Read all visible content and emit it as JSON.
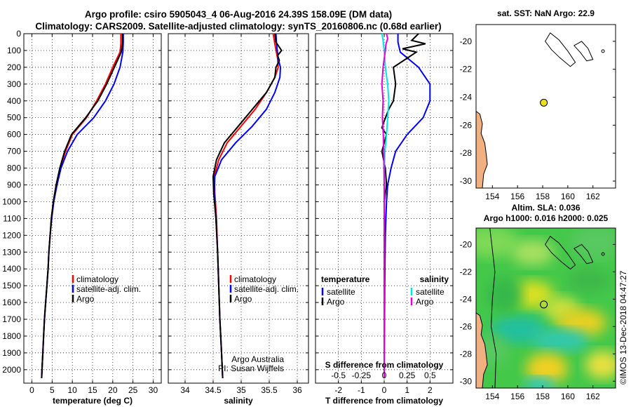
{
  "header": {
    "title_line1": "Argo profile: csiro 5905043_4 06-Aug-2016 24.39S 158.09E (DM data)",
    "title_line2": "Climatology: CARS2009. Satellite-adjusted climatology: synTS_20160806.nc (0.68d earlier)"
  },
  "colors": {
    "climatology": "#ff0000",
    "satellite": "#0000ff",
    "argo": "#000000",
    "sat_salinity": "#00e5e5",
    "argo_salinity": "#e000e0",
    "map_land": "#f0b080"
  },
  "chart_data": [
    {
      "type": "line",
      "id": "temperature",
      "xlabel": "temperature (deg C)",
      "xlim": [
        -2,
        32
      ],
      "xticks": [
        0,
        5,
        10,
        15,
        20,
        25,
        30
      ],
      "ylim": [
        0,
        2080
      ],
      "yticks": [
        0,
        100,
        200,
        300,
        400,
        500,
        600,
        700,
        800,
        900,
        1000,
        1100,
        1200,
        1300,
        1400,
        1500,
        1600,
        1700,
        1800,
        1900,
        2000
      ],
      "legend": [
        "climatology",
        "satellite-adj. clim.",
        "Argo"
      ],
      "series": [
        {
          "name": "climatology",
          "color": "#ff0000",
          "points": [
            [
              22.0,
              0
            ],
            [
              22.0,
              60
            ],
            [
              21.8,
              110
            ],
            [
              20.0,
              200
            ],
            [
              18.2,
              300
            ],
            [
              16.0,
              400
            ],
            [
              13.5,
              500
            ],
            [
              10.0,
              600
            ],
            [
              8.3,
              700
            ],
            [
              7.0,
              800
            ],
            [
              6.0,
              900
            ],
            [
              5.3,
              1000
            ],
            [
              4.8,
              1100
            ],
            [
              4.5,
              1200
            ],
            [
              4.2,
              1300
            ],
            [
              4.0,
              1400
            ],
            [
              3.7,
              1500
            ],
            [
              3.4,
              1600
            ],
            [
              3.1,
              1700
            ],
            [
              2.9,
              1800
            ],
            [
              2.7,
              1900
            ],
            [
              2.5,
              2000
            ],
            [
              2.4,
              2050
            ]
          ]
        },
        {
          "name": "satellite-adj. clim.",
          "color": "#0000ff",
          "points": [
            [
              22.6,
              0
            ],
            [
              22.6,
              50
            ],
            [
              22.5,
              110
            ],
            [
              21.8,
              200
            ],
            [
              20.3,
              300
            ],
            [
              18.2,
              400
            ],
            [
              15.3,
              500
            ],
            [
              11.2,
              600
            ],
            [
              8.8,
              700
            ],
            [
              7.2,
              800
            ],
            [
              6.2,
              900
            ],
            [
              5.4,
              1000
            ],
            [
              4.9,
              1100
            ],
            [
              4.5,
              1200
            ],
            [
              4.2,
              1300
            ],
            [
              4.0,
              1400
            ],
            [
              3.7,
              1500
            ],
            [
              3.4,
              1600
            ],
            [
              3.1,
              1700
            ],
            [
              2.9,
              1800
            ],
            [
              2.7,
              1900
            ],
            [
              2.5,
              2000
            ],
            [
              2.4,
              2050
            ]
          ]
        },
        {
          "name": "Argo",
          "color": "#000000",
          "points": [
            [
              22.4,
              0
            ],
            [
              22.4,
              60
            ],
            [
              22.1,
              110
            ],
            [
              20.4,
              200
            ],
            [
              18.5,
              300
            ],
            [
              16.3,
              400
            ],
            [
              13.3,
              500
            ],
            [
              9.8,
              600
            ],
            [
              8.1,
              700
            ],
            [
              6.9,
              800
            ],
            [
              6.0,
              900
            ],
            [
              5.3,
              1000
            ],
            [
              4.8,
              1100
            ],
            [
              4.5,
              1200
            ],
            [
              4.2,
              1300
            ],
            [
              4.0,
              1400
            ],
            [
              3.7,
              1500
            ],
            [
              3.4,
              1600
            ],
            [
              3.1,
              1700
            ],
            [
              2.9,
              1800
            ],
            [
              2.7,
              1900
            ],
            [
              2.5,
              2000
            ],
            [
              2.4,
              2050
            ]
          ]
        }
      ]
    },
    {
      "type": "line",
      "id": "salinity",
      "xlabel": "salinity",
      "xlim": [
        33.7,
        36.2
      ],
      "xticks": [
        34,
        34.5,
        35,
        35.5,
        36
      ],
      "ylim": [
        0,
        2080
      ],
      "yticks": [
        0,
        100,
        200,
        300,
        400,
        500,
        600,
        700,
        800,
        900,
        1000,
        1100,
        1200,
        1300,
        1400,
        1500,
        1600,
        1700,
        1800,
        1900,
        2000
      ],
      "legend": [
        "climatology",
        "satellite-adj. clim.",
        "Argo"
      ],
      "annotation": [
        "Argo Australia",
        "PI: Susan Wijffels"
      ],
      "series": [
        {
          "name": "climatology",
          "color": "#ff0000",
          "points": [
            [
              35.57,
              0
            ],
            [
              35.6,
              60
            ],
            [
              35.65,
              150
            ],
            [
              35.66,
              200
            ],
            [
              35.6,
              260
            ],
            [
              35.45,
              350
            ],
            [
              35.25,
              450
            ],
            [
              35.0,
              550
            ],
            [
              34.75,
              650
            ],
            [
              34.6,
              750
            ],
            [
              34.52,
              850
            ],
            [
              34.53,
              950
            ],
            [
              34.56,
              1100
            ],
            [
              34.58,
              1300
            ],
            [
              34.6,
              1500
            ],
            [
              34.62,
              1700
            ],
            [
              34.65,
              1900
            ],
            [
              34.67,
              2050
            ]
          ]
        },
        {
          "name": "satellite-adj. clim.",
          "color": "#0000ff",
          "points": [
            [
              35.62,
              0
            ],
            [
              35.63,
              60
            ],
            [
              35.66,
              150
            ],
            [
              35.7,
              200
            ],
            [
              35.69,
              260
            ],
            [
              35.6,
              350
            ],
            [
              35.45,
              450
            ],
            [
              35.2,
              550
            ],
            [
              34.9,
              650
            ],
            [
              34.65,
              750
            ],
            [
              34.53,
              850
            ],
            [
              34.52,
              950
            ],
            [
              34.55,
              1100
            ],
            [
              34.58,
              1300
            ],
            [
              34.6,
              1500
            ],
            [
              34.62,
              1700
            ],
            [
              34.65,
              1900
            ],
            [
              34.67,
              2050
            ]
          ]
        },
        {
          "name": "Argo",
          "color": "#000000",
          "points": [
            [
              35.6,
              0
            ],
            [
              35.62,
              50
            ],
            [
              35.72,
              100
            ],
            [
              35.65,
              130
            ],
            [
              35.68,
              160
            ],
            [
              35.62,
              200
            ],
            [
              35.6,
              260
            ],
            [
              35.45,
              350
            ],
            [
              35.2,
              450
            ],
            [
              34.95,
              550
            ],
            [
              34.7,
              650
            ],
            [
              34.56,
              750
            ],
            [
              34.5,
              850
            ],
            [
              34.51,
              950
            ],
            [
              34.55,
              1100
            ],
            [
              34.58,
              1300
            ],
            [
              34.6,
              1500
            ],
            [
              34.62,
              1700
            ],
            [
              34.65,
              1900
            ],
            [
              34.67,
              2050
            ]
          ]
        }
      ]
    },
    {
      "type": "line",
      "id": "difference",
      "xlabel": "T difference from climatology",
      "xlabel2": "S difference from climatology",
      "xlim": [
        -3,
        3
      ],
      "xticks": [
        -2,
        -1,
        0,
        1,
        2
      ],
      "x2ticks": [
        "-0.5",
        "-0.25",
        "0",
        "0.25",
        "0.5"
      ],
      "ylim": [
        0,
        2080
      ],
      "yticks": [
        0,
        100,
        200,
        300,
        400,
        500,
        600,
        700,
        800,
        900,
        1000,
        1100,
        1200,
        1300,
        1400,
        1500,
        1600,
        1700,
        1800,
        1900,
        2000
      ],
      "legend_left_title": "temperature",
      "legend_right_title": "salinity",
      "legend_left": [
        "satellite",
        "Argo"
      ],
      "legend_right": [
        "satellite",
        "Argo"
      ],
      "series": [
        {
          "name": "temperature satellite",
          "color": "#0000ff",
          "points": [
            [
              0.6,
              0
            ],
            [
              0.6,
              50
            ],
            [
              0.7,
              110
            ],
            [
              1.5,
              200
            ],
            [
              2.0,
              300
            ],
            [
              2.0,
              400
            ],
            [
              1.7,
              500
            ],
            [
              1.0,
              600
            ],
            [
              0.5,
              700
            ],
            [
              0.3,
              800
            ],
            [
              0.15,
              900
            ],
            [
              0.1,
              1000
            ],
            [
              0.05,
              1200
            ],
            [
              0.02,
              1500
            ],
            [
              0,
              2050
            ]
          ]
        },
        {
          "name": "temperature Argo",
          "color": "#000000",
          "points": [
            [
              1.5,
              0
            ],
            [
              1.2,
              40
            ],
            [
              1.8,
              60
            ],
            [
              0.8,
              90
            ],
            [
              1.4,
              110
            ],
            [
              0.4,
              200
            ],
            [
              0.5,
              300
            ],
            [
              0.4,
              400
            ],
            [
              0.2,
              450
            ],
            [
              0.0,
              520
            ],
            [
              -0.1,
              560
            ],
            [
              0.1,
              600
            ],
            [
              -0.1,
              700
            ],
            [
              0.05,
              800
            ],
            [
              0.1,
              900
            ],
            [
              0.0,
              1000
            ],
            [
              0.02,
              1200
            ],
            [
              0,
              1500
            ],
            [
              0,
              2050
            ]
          ]
        },
        {
          "name": "salinity satellite",
          "color": "#00e5e5",
          "points": [
            [
              -0.1,
              0
            ],
            [
              -0.05,
              40
            ],
            [
              0,
              100
            ],
            [
              0.05,
              200
            ],
            [
              0.15,
              300
            ],
            [
              0.2,
              400
            ],
            [
              0.15,
              500
            ],
            [
              0.1,
              600
            ],
            [
              0.03,
              700
            ],
            [
              0.01,
              800
            ],
            [
              0,
              1000
            ],
            [
              0,
              2050
            ]
          ]
        },
        {
          "name": "salinity Argo",
          "color": "#e000e0",
          "points": [
            [
              0.1,
              0
            ],
            [
              0.15,
              30
            ],
            [
              0.08,
              60
            ],
            [
              0.05,
              100
            ],
            [
              -0.05,
              200
            ],
            [
              -0.1,
              300
            ],
            [
              -0.05,
              400
            ],
            [
              -0.08,
              500
            ],
            [
              -0.04,
              600
            ],
            [
              -0.02,
              700
            ],
            [
              -0.01,
              800
            ],
            [
              0,
              900
            ],
            [
              0,
              2050
            ]
          ]
        }
      ]
    },
    {
      "type": "scatter",
      "id": "sst-map",
      "title": "sat. SST: NaN Argo: 22.9",
      "xlim": [
        152.7,
        163.8
      ],
      "ylim": [
        -30.5,
        -18.8
      ],
      "xticks": [
        154,
        156,
        158,
        160,
        162
      ],
      "yticks": [
        -20,
        -22,
        -24,
        -26,
        -28,
        -30
      ],
      "points": [
        {
          "x": 158.09,
          "y": -24.39
        }
      ]
    },
    {
      "type": "heatmap",
      "id": "sla-map",
      "title_line1": "Altim. SLA: 0.036",
      "title_line2": "Argo h1000: 0.016 h2000: 0.025",
      "xlim": [
        152.7,
        163.8
      ],
      "ylim": [
        -30.5,
        -18.8
      ],
      "xticks": [
        154,
        156,
        158,
        160,
        162
      ],
      "yticks": [
        -20,
        -22,
        -24,
        -26,
        -28,
        -30
      ],
      "points": [
        {
          "x": 158.09,
          "y": -24.39
        }
      ]
    }
  ],
  "footer": {
    "credit": "©IMOS 13-Dec-2018 04:47:27"
  }
}
